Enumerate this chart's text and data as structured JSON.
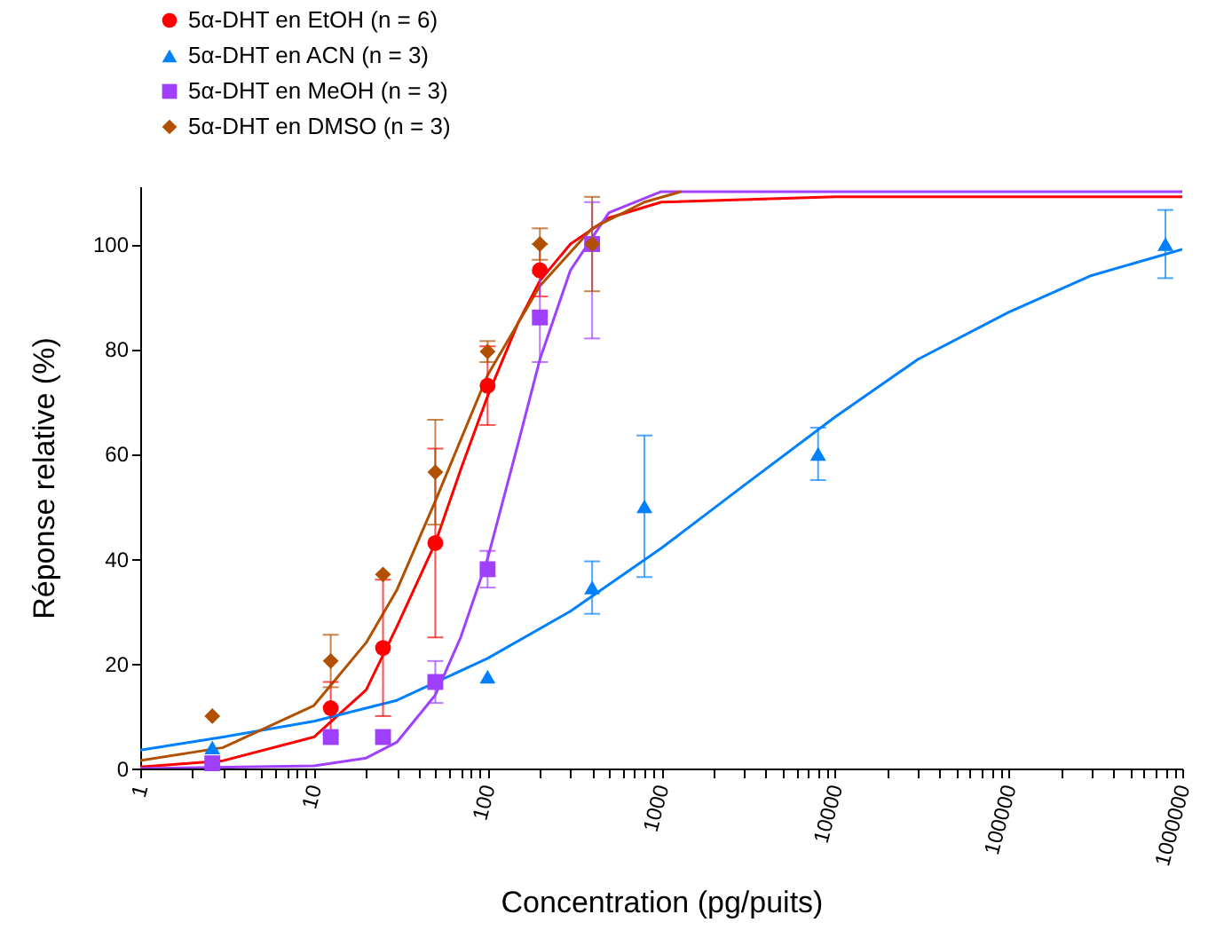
{
  "chart_data": {
    "type": "scatter",
    "xlabel": "Concentration (pg/puits)",
    "ylabel": "Réponse relative (%)",
    "log": "x",
    "grid": false,
    "legend": "top left",
    "line_style": "solid",
    "xlim": [
      1,
      1000000
    ],
    "ylim": [
      0,
      111
    ],
    "xticks": [
      1,
      {
        "value": 2,
        "label": null
      },
      {
        "value": 3,
        "label": null
      },
      {
        "value": 4,
        "label": null
      },
      {
        "value": 5,
        "label": null
      },
      {
        "value": 6,
        "label": null
      },
      {
        "value": 7,
        "label": null
      },
      {
        "value": 8,
        "label": null
      },
      {
        "value": 9,
        "label": null
      },
      10,
      {
        "value": 20,
        "label": null
      },
      {
        "value": 30,
        "label": null
      },
      {
        "value": 40,
        "label": null
      },
      {
        "value": 50,
        "label": null
      },
      {
        "value": 60,
        "label": null
      },
      {
        "value": 70,
        "label": null
      },
      {
        "value": 80,
        "label": null
      },
      {
        "value": 90,
        "label": null
      },
      100,
      {
        "value": 200,
        "label": null
      },
      {
        "value": 300,
        "label": null
      },
      {
        "value": 400,
        "label": null
      },
      {
        "value": 500,
        "label": null
      },
      {
        "value": 600,
        "label": null
      },
      {
        "value": 700,
        "label": null
      },
      {
        "value": 800,
        "label": null
      },
      {
        "value": 900,
        "label": null
      },
      1000,
      {
        "value": 2000,
        "label": null
      },
      {
        "value": 3000,
        "label": null
      },
      {
        "value": 4000,
        "label": null
      },
      {
        "value": 5000,
        "label": null
      },
      {
        "value": 6000,
        "label": null
      },
      {
        "value": 7000,
        "label": null
      },
      {
        "value": 8000,
        "label": null
      },
      {
        "value": 9000,
        "label": null
      },
      10000,
      {
        "value": 20000,
        "label": null
      },
      {
        "value": 30000,
        "label": null
      },
      {
        "value": 40000,
        "label": null
      },
      {
        "value": 50000,
        "label": null
      },
      {
        "value": 60000,
        "label": null
      },
      {
        "value": 70000,
        "label": null
      },
      {
        "value": 80000,
        "label": null
      },
      {
        "value": 90000,
        "label": null
      },
      100000,
      {
        "value": 200000,
        "label": null
      },
      {
        "value": 300000,
        "label": null
      },
      {
        "value": 400000,
        "label": null
      },
      {
        "value": 500000,
        "label": null
      },
      {
        "value": 600000,
        "label": null
      },
      {
        "value": 700000,
        "label": null
      },
      {
        "value": 800000,
        "label": null
      },
      {
        "value": 900000,
        "label": null
      },
      1000000
    ],
    "yticks": [
      0,
      20,
      40,
      60,
      80,
      100
    ],
    "series": [
      {
        "name": "5α-DHT en EtOH (n = 6)",
        "color": "#ff0000",
        "marker": "circle",
        "x": [
          12.5,
          25,
          50,
          100,
          200
        ],
        "values": [
          11.5,
          23,
          43,
          73,
          95
        ],
        "errors": [
          5,
          13,
          18,
          7.5,
          5
        ]
      },
      {
        "name": "5α-DHT en ACN (n = 3)",
        "color": "#0080ff",
        "marker": "triangle",
        "x": [
          2.6,
          100,
          400,
          800,
          8000,
          800000
        ],
        "values": [
          4,
          17.5,
          34.5,
          50,
          60,
          100
        ],
        "errors": [
          null,
          null,
          5,
          13.5,
          5,
          6.5
        ]
      },
      {
        "name": "5α-DHT en MeOH (n = 3)",
        "color": "#a040ff",
        "marker": "square",
        "x": [
          2.6,
          12.5,
          25,
          50,
          100,
          200,
          400
        ],
        "values": [
          1,
          6,
          6,
          16.5,
          38,
          86,
          100
        ],
        "errors": [
          null,
          null,
          null,
          4,
          3.5,
          8.5,
          [
            82,
            108
          ]
        ]
      },
      {
        "name": "5α-DHT en DMSO (n = 3)",
        "color": "#b05000",
        "marker": "diamond",
        "x": [
          2.6,
          12.5,
          25,
          50,
          100,
          200,
          400
        ],
        "values": [
          10,
          20.5,
          37,
          56.5,
          79.5,
          100,
          100
        ],
        "errors": [
          null,
          5,
          null,
          10,
          2,
          3,
          9
        ]
      },
      {
        "type": "line",
        "color": "#ff0000",
        "x": [
          1,
          3,
          10,
          20,
          30,
          50,
          70,
          100,
          150,
          200,
          300,
          500,
          1000,
          10000,
          1000000
        ],
        "values": [
          0.3,
          1.5,
          6,
          15,
          27,
          43,
          57,
          71,
          85,
          93,
          100,
          105,
          108,
          109,
          109
        ]
      },
      {
        "type": "line",
        "color": "#0080ff",
        "x": [
          1,
          3,
          10,
          30,
          100,
          300,
          1000,
          3000,
          10000,
          30000,
          100000,
          300000,
          1000000
        ],
        "values": [
          3.5,
          6,
          9,
          13,
          21,
          30,
          42,
          54,
          67,
          78,
          87,
          94,
          99
        ]
      },
      {
        "type": "line",
        "color": "#a040ff",
        "x": [
          1,
          10,
          20,
          30,
          50,
          70,
          100,
          150,
          200,
          300,
          500,
          1000,
          1000000
        ],
        "values": [
          0,
          0.5,
          2,
          5,
          14,
          25,
          40,
          62,
          78,
          95,
          106,
          110,
          110
        ]
      },
      {
        "type": "line",
        "color": "#b05000",
        "x": [
          1,
          3,
          10,
          20,
          30,
          50,
          100,
          200,
          400,
          800,
          1300
        ],
        "values": [
          1.5,
          4,
          12,
          24,
          34,
          51,
          75,
          92,
          103,
          108,
          110
        ]
      }
    ]
  }
}
